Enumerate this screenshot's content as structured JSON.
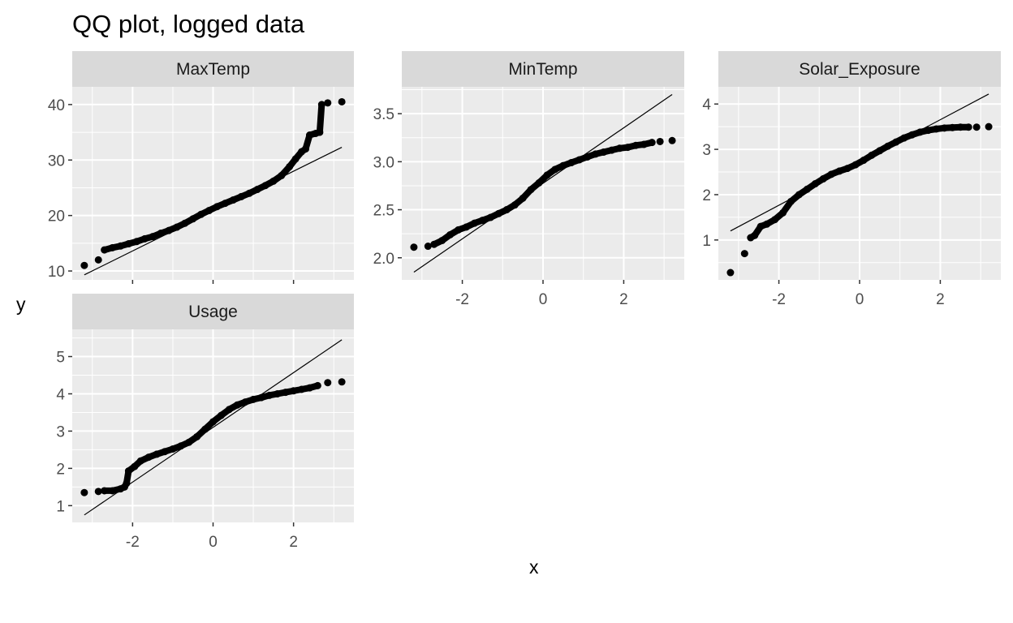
{
  "chart_data": {
    "type": "scatter",
    "subtype": "faceted QQ plot with reference lines",
    "title": "QQ plot, logged data",
    "xlabel": "x",
    "ylabel": "y",
    "grid": true,
    "background": "#EBEBEB",
    "strip_background": "#D9D9D9",
    "point_color": "#000000",
    "line_color": "#000000",
    "panels": [
      {
        "name": "MaxTemp",
        "xlim": [
          -3.5,
          3.5
        ],
        "ylim": [
          8.4,
          43.2
        ],
        "yticks": [
          10,
          20,
          30,
          40
        ],
        "xticks": [
          -2,
          0,
          2
        ],
        "show_x_tick_labels": false,
        "line": {
          "x": [
            -3.2,
            3.2
          ],
          "y": [
            9.3,
            32.3
          ]
        },
        "points": [
          [
            -3.2,
            11.0
          ],
          [
            -2.85,
            12.0
          ],
          [
            -2.7,
            13.8
          ],
          [
            -2.5,
            14.2
          ],
          [
            -2.3,
            14.5
          ],
          [
            -2.1,
            14.9
          ],
          [
            -1.9,
            15.3
          ],
          [
            -1.7,
            15.8
          ],
          [
            -1.5,
            16.2
          ],
          [
            -1.3,
            16.8
          ],
          [
            -1.1,
            17.3
          ],
          [
            -0.9,
            17.9
          ],
          [
            -0.7,
            18.6
          ],
          [
            -0.5,
            19.4
          ],
          [
            -0.3,
            20.2
          ],
          [
            -0.1,
            20.9
          ],
          [
            0.1,
            21.6
          ],
          [
            0.3,
            22.2
          ],
          [
            0.5,
            22.8
          ],
          [
            0.7,
            23.4
          ],
          [
            0.9,
            24.0
          ],
          [
            1.1,
            24.7
          ],
          [
            1.3,
            25.4
          ],
          [
            1.5,
            26.2
          ],
          [
            1.7,
            27.2
          ],
          [
            1.9,
            28.8
          ],
          [
            2.05,
            30.2
          ],
          [
            2.2,
            31.5
          ],
          [
            2.3,
            32.0
          ],
          [
            2.4,
            34.5
          ],
          [
            2.55,
            34.8
          ],
          [
            2.65,
            35.0
          ],
          [
            2.7,
            40.0
          ],
          [
            2.85,
            40.3
          ],
          [
            3.2,
            40.5
          ]
        ]
      },
      {
        "name": "MinTemp",
        "xlim": [
          -3.5,
          3.5
        ],
        "ylim": [
          1.77,
          3.78
        ],
        "yticks": [
          2.0,
          2.5,
          3.0,
          3.5
        ],
        "ytick_labels": [
          "2.0",
          "2.5",
          "3.0",
          "3.5"
        ],
        "xticks": [
          -2,
          0,
          2
        ],
        "line": {
          "x": [
            -3.2,
            3.2
          ],
          "y": [
            1.85,
            3.7
          ]
        },
        "points": [
          [
            -3.2,
            2.11
          ],
          [
            -2.85,
            2.12
          ],
          [
            -2.7,
            2.14
          ],
          [
            -2.5,
            2.18
          ],
          [
            -2.3,
            2.24
          ],
          [
            -2.1,
            2.29
          ],
          [
            -1.9,
            2.32
          ],
          [
            -1.7,
            2.36
          ],
          [
            -1.5,
            2.39
          ],
          [
            -1.3,
            2.42
          ],
          [
            -1.1,
            2.46
          ],
          [
            -0.9,
            2.5
          ],
          [
            -0.7,
            2.55
          ],
          [
            -0.5,
            2.62
          ],
          [
            -0.3,
            2.71
          ],
          [
            -0.1,
            2.78
          ],
          [
            0.1,
            2.86
          ],
          [
            0.3,
            2.92
          ],
          [
            0.5,
            2.96
          ],
          [
            0.7,
            2.99
          ],
          [
            0.9,
            3.02
          ],
          [
            1.1,
            3.05
          ],
          [
            1.3,
            3.08
          ],
          [
            1.5,
            3.1
          ],
          [
            1.7,
            3.12
          ],
          [
            1.9,
            3.14
          ],
          [
            2.1,
            3.15
          ],
          [
            2.3,
            3.17
          ],
          [
            2.5,
            3.18
          ],
          [
            2.7,
            3.2
          ],
          [
            2.9,
            3.21
          ],
          [
            3.2,
            3.22
          ]
        ]
      },
      {
        "name": "Solar_Exposure",
        "xlim": [
          -3.5,
          3.5
        ],
        "ylim": [
          0.12,
          4.38
        ],
        "yticks": [
          1,
          2,
          3,
          4
        ],
        "xticks": [
          -2,
          0,
          2
        ],
        "line": {
          "x": [
            -3.2,
            3.2
          ],
          "y": [
            1.2,
            4.22
          ]
        },
        "points": [
          [
            -3.2,
            0.28
          ],
          [
            -2.85,
            0.7
          ],
          [
            -2.7,
            1.05
          ],
          [
            -2.6,
            1.1
          ],
          [
            -2.45,
            1.3
          ],
          [
            -2.3,
            1.35
          ],
          [
            -2.1,
            1.45
          ],
          [
            -1.9,
            1.6
          ],
          [
            -1.7,
            1.85
          ],
          [
            -1.5,
            2.0
          ],
          [
            -1.3,
            2.12
          ],
          [
            -1.1,
            2.24
          ],
          [
            -0.9,
            2.35
          ],
          [
            -0.7,
            2.45
          ],
          [
            -0.5,
            2.52
          ],
          [
            -0.3,
            2.58
          ],
          [
            -0.1,
            2.66
          ],
          [
            0.1,
            2.76
          ],
          [
            0.3,
            2.87
          ],
          [
            0.5,
            2.97
          ],
          [
            0.7,
            3.07
          ],
          [
            0.9,
            3.16
          ],
          [
            1.1,
            3.25
          ],
          [
            1.3,
            3.32
          ],
          [
            1.5,
            3.38
          ],
          [
            1.7,
            3.42
          ],
          [
            1.9,
            3.45
          ],
          [
            2.1,
            3.47
          ],
          [
            2.3,
            3.48
          ],
          [
            2.5,
            3.49
          ],
          [
            2.7,
            3.49
          ],
          [
            2.9,
            3.49
          ],
          [
            3.2,
            3.5
          ]
        ]
      },
      {
        "name": "Usage",
        "xlim": [
          -3.5,
          3.5
        ],
        "ylim": [
          0.55,
          5.73
        ],
        "yticks": [
          1,
          2,
          3,
          4,
          5
        ],
        "xticks": [
          -2,
          0,
          2
        ],
        "line": {
          "x": [
            -3.2,
            3.2
          ],
          "y": [
            0.75,
            5.45
          ]
        },
        "points": [
          [
            -3.2,
            1.35
          ],
          [
            -2.85,
            1.38
          ],
          [
            -2.7,
            1.4
          ],
          [
            -2.5,
            1.4
          ],
          [
            -2.3,
            1.45
          ],
          [
            -2.2,
            1.5
          ],
          [
            -2.15,
            1.6
          ],
          [
            -2.1,
            1.93
          ],
          [
            -1.95,
            2.05
          ],
          [
            -1.8,
            2.2
          ],
          [
            -1.6,
            2.3
          ],
          [
            -1.4,
            2.38
          ],
          [
            -1.2,
            2.45
          ],
          [
            -1.0,
            2.52
          ],
          [
            -0.8,
            2.6
          ],
          [
            -0.6,
            2.7
          ],
          [
            -0.4,
            2.85
          ],
          [
            -0.2,
            3.05
          ],
          [
            0.0,
            3.25
          ],
          [
            0.2,
            3.42
          ],
          [
            0.4,
            3.58
          ],
          [
            0.6,
            3.7
          ],
          [
            0.8,
            3.78
          ],
          [
            1.0,
            3.85
          ],
          [
            1.2,
            3.9
          ],
          [
            1.4,
            3.96
          ],
          [
            1.6,
            4.0
          ],
          [
            1.8,
            4.04
          ],
          [
            2.0,
            4.08
          ],
          [
            2.2,
            4.12
          ],
          [
            2.4,
            4.16
          ],
          [
            2.6,
            4.22
          ],
          [
            2.85,
            4.3
          ],
          [
            3.2,
            4.32
          ]
        ]
      }
    ]
  }
}
